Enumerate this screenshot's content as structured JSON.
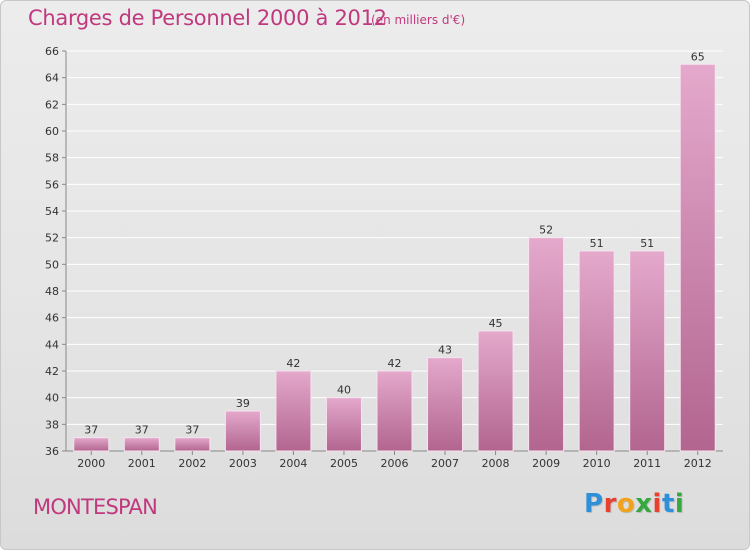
{
  "header": {
    "title": "Charges de Personnel 2000 à 2012",
    "subtitle": "(en milliers d'€)"
  },
  "footer": {
    "commune": "MONTESPAN",
    "logo_text": "Proxiti",
    "logo_colors": [
      "#2f8fd8",
      "#e8412e",
      "#f0a31b",
      "#36a83f",
      "#e8412e",
      "#2f8fd8",
      "#36a83f"
    ]
  },
  "colors": {
    "accent": "#c0397e",
    "bar_light": "#e4a9cc",
    "bar_dark": "#b2658f"
  },
  "chart_data": {
    "type": "bar",
    "title": "Charges de Personnel 2000 à 2012",
    "subtitle": "(en milliers d'€)",
    "categories": [
      "2000",
      "2001",
      "2002",
      "2003",
      "2004",
      "2005",
      "2006",
      "2007",
      "2008",
      "2009",
      "2010",
      "2011",
      "2012"
    ],
    "values": [
      37,
      37,
      37,
      39,
      42,
      40,
      42,
      43,
      45,
      52,
      51,
      51,
      65
    ],
    "ylim": [
      36,
      66
    ],
    "yticks": [
      36,
      38,
      40,
      42,
      44,
      46,
      48,
      50,
      52,
      54,
      56,
      58,
      60,
      62,
      64,
      66
    ],
    "grid": true,
    "data_labels": true
  }
}
